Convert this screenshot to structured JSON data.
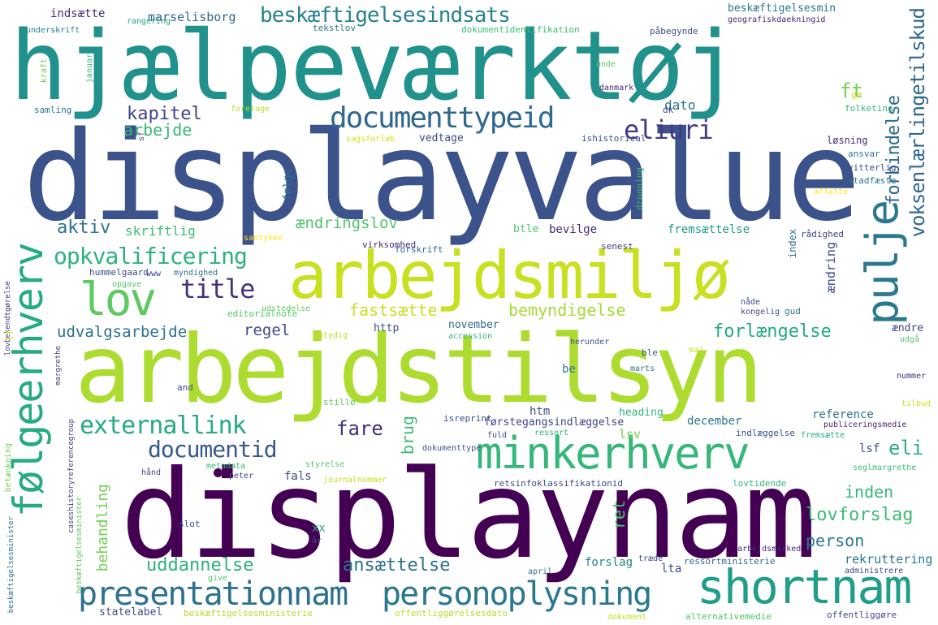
{
  "words": [
    {
      "text": "hjælpeværktøj",
      "color": "#21918c"
    },
    {
      "text": "displayvalue",
      "color": "#3b528b"
    },
    {
      "text": "displaynam",
      "color": "#440154"
    },
    {
      "text": "arbejdstilsyn",
      "color": "#addc30"
    },
    {
      "text": "arbejdsmiljø",
      "color": "#c8e020"
    },
    {
      "text": "minkerhverv",
      "color": "#35b779"
    },
    {
      "text": "shortnam",
      "color": "#1f9e89"
    },
    {
      "text": "presentationnam",
      "color": "#2c728e"
    },
    {
      "text": "personoplysning",
      "color": "#2a788e"
    },
    {
      "text": "følgeerhverv",
      "color": "#25ab82"
    },
    {
      "text": "pulje",
      "color": "#2a788e"
    },
    {
      "text": "lov",
      "color": "#5ec962"
    },
    {
      "text": "documenttypeid",
      "color": "#31688e"
    },
    {
      "text": "beskæftigelsesindsats",
      "color": "#26828e"
    },
    {
      "text": "externallink",
      "color": "#25ab82"
    },
    {
      "text": "opkvalificering",
      "color": "#2db27d"
    },
    {
      "text": "title",
      "color": "#46327e"
    },
    {
      "text": "eliuri",
      "color": "#443983"
    },
    {
      "text": "documentid",
      "color": "#38598c"
    },
    {
      "text": "voksenlærlingetilskud",
      "color": "#31688e"
    },
    {
      "text": "forbindelse",
      "color": "#31688e"
    },
    {
      "text": "kapitel",
      "color": "#414487"
    },
    {
      "text": "arbejde",
      "color": "#35b779"
    },
    {
      "text": "aktiv",
      "color": "#2c728e"
    },
    {
      "text": "skriftlig",
      "color": "#3dbc74"
    },
    {
      "text": "ændringslov",
      "color": "#52c569"
    },
    {
      "text": "fastsætte",
      "color": "#c8e020"
    },
    {
      "text": "bemyndigelse",
      "color": "#a5db36"
    },
    {
      "text": "forlængelse",
      "color": "#25ab82"
    },
    {
      "text": "udvalgsarbejde",
      "color": "#2c728e"
    },
    {
      "text": "regel",
      "color": "#3e4a89"
    },
    {
      "text": "fare",
      "color": "#472d7b"
    },
    {
      "text": "brug",
      "color": "#3dbc74"
    },
    {
      "text": "behandling",
      "color": "#75d054"
    },
    {
      "text": "uddannelse",
      "color": "#2db27d"
    },
    {
      "text": "ansættelse",
      "color": "#2c728e"
    },
    {
      "text": "eli",
      "color": "#2db27d"
    },
    {
      "text": "inden",
      "color": "#35b779"
    },
    {
      "text": "lovforslag",
      "color": "#3dbc74"
    },
    {
      "text": "person",
      "color": "#2a788e"
    },
    {
      "text": "ret",
      "color": "#4ac16d"
    },
    {
      "text": "ft",
      "color": "#75d054"
    },
    {
      "text": "indsætte",
      "color": "#472d7b"
    },
    {
      "text": "marselisborg",
      "color": "#31688e"
    },
    {
      "text": "dato",
      "color": "#2c728e"
    },
    {
      "text": "beskæftigelsesmin",
      "color": "#2a788e"
    },
    {
      "text": "underskrift",
      "color": "#26828e"
    },
    {
      "text": "rangering",
      "color": "#22a884"
    },
    {
      "text": "tekstlov",
      "color": "#2a788e"
    },
    {
      "text": "dokumentidentifikation",
      "color": "#3dbc74"
    },
    {
      "text": "påbegynde",
      "color": "#3e4a89"
    },
    {
      "text": "geografiskdaekningid",
      "color": "#482878"
    },
    {
      "text": "samling",
      "color": "#2c728e"
    },
    {
      "text": "foretage",
      "color": "#b5de2b"
    },
    {
      "text": "sagsforløb",
      "color": "#d8e219"
    },
    {
      "text": "vedtage",
      "color": "#3e4a89"
    },
    {
      "text": "ishistorical",
      "color": "#3b528b"
    },
    {
      "text": "løsning",
      "color": "#482878"
    },
    {
      "text": "folketing",
      "color": "#35b779"
    },
    {
      "text": "ansvar",
      "color": "#2a788e"
    },
    {
      "text": "vitterlig",
      "color": "#3b528b"
    },
    {
      "text": "stadfæste",
      "color": "#2c728e"
    },
    {
      "text": "affatte",
      "color": "#fde725"
    },
    {
      "text": "unde",
      "color": "#5ec962"
    },
    {
      "text": "danmark",
      "color": "#482878"
    },
    {
      "text": "dk",
      "color": "#3e4a89"
    },
    {
      "text": "gø",
      "color": "#c8e020"
    },
    {
      "text": "følge",
      "color": "#2c728e"
    },
    {
      "text": "dronning",
      "color": "#3dbc74"
    },
    {
      "text": "samtykke",
      "color": "#fde725"
    },
    {
      "text": "virksomhed",
      "color": "#482878"
    },
    {
      "text": "forskrift",
      "color": "#31688e"
    },
    {
      "text": "senest",
      "color": "#443983"
    },
    {
      "text": "index",
      "color": "#2c728e"
    },
    {
      "text": "rådighed",
      "color": "#404688"
    },
    {
      "text": "fremsættelse",
      "color": "#1f9e89"
    },
    {
      "text": "btle",
      "color": "#52c569"
    },
    {
      "text": "bevilge",
      "color": "#482878"
    },
    {
      "text": "ændring",
      "color": "#3e4a89"
    },
    {
      "text": "hummelgaard",
      "color": "#3e4a89"
    },
    {
      "text": "www",
      "color": "#414487"
    },
    {
      "text": "myndighed",
      "color": "#2c728e"
    },
    {
      "text": "opgave",
      "color": "#52c569"
    },
    {
      "text": "editorialnote",
      "color": "#52c569"
    },
    {
      "text": "udstedelse",
      "color": "#63cb5f"
    },
    {
      "text": "nåde",
      "color": "#3e4a89"
    },
    {
      "text": "kongelig",
      "color": "#3e4a89"
    },
    {
      "text": "gud",
      "color": "#2c728e"
    },
    {
      "text": "entydig",
      "color": "#bddf26"
    },
    {
      "text": "http",
      "color": "#3b528b"
    },
    {
      "text": "november",
      "color": "#31688e"
    },
    {
      "text": "accession",
      "color": "#35b779"
    },
    {
      "text": "ændre",
      "color": "#404688"
    },
    {
      "text": "udgå",
      "color": "#52c569"
    },
    {
      "text": "herunder",
      "color": "#3b528b"
    },
    {
      "text": "maj",
      "color": "#c8e020"
    },
    {
      "text": "ble",
      "color": "#3b528b"
    },
    {
      "text": "marts",
      "color": "#2a788e"
    },
    {
      "text": "be",
      "color": "#2c728e"
    },
    {
      "text": "and",
      "color": "#3e4a89"
    },
    {
      "text": "stille",
      "color": "#5ec962"
    },
    {
      "text": "htm",
      "color": "#3b528b"
    },
    {
      "text": "isreprint",
      "color": "#3b528b"
    },
    {
      "text": "førstegangsindlæggelse",
      "color": "#404688"
    },
    {
      "text": "heading",
      "color": "#35b779"
    },
    {
      "text": "december",
      "color": "#2c728e"
    },
    {
      "text": "reference",
      "color": "#2c728e"
    },
    {
      "text": "publiceringsmedie",
      "color": "#482878"
    },
    {
      "text": "nummer",
      "color": "#46327e"
    },
    {
      "text": "tilbud",
      "color": "#c8e020"
    },
    {
      "text": "lsf",
      "color": "#3e4a89"
    },
    {
      "text": "seglmargrethe",
      "color": "#3dbc74"
    },
    {
      "text": "fuld",
      "color": "#3e4a89"
    },
    {
      "text": "ressort",
      "color": "#2db27d"
    },
    {
      "text": "indlæggelse",
      "color": "#3b528b"
    },
    {
      "text": "fremsætte",
      "color": "#25ab82"
    },
    {
      "text": "dokumenttype",
      "color": "#3b528b"
    },
    {
      "text": "lsv",
      "color": "#75d054"
    },
    {
      "text": "metadata",
      "color": "#35b779"
    },
    {
      "text": "peter",
      "color": "#3e4a89"
    },
    {
      "text": "styrelse",
      "color": "#52c569"
    },
    {
      "text": "journalnummer",
      "color": "#c8e020"
    },
    {
      "text": "fals",
      "color": "#3e4a89"
    },
    {
      "text": "hånd",
      "color": "#3e4a89"
    },
    {
      "text": "retsinfoklassifikationid",
      "color": "#3e4a89"
    },
    {
      "text": "lovtidende",
      "color": "#35b779"
    },
    {
      "text": "xx",
      "color": "#25ab82"
    },
    {
      "text": "år",
      "color": "#3e4a89"
    },
    {
      "text": "slot",
      "color": "#3e4a89"
    },
    {
      "text": "arbejdsmarked",
      "color": "#482878"
    },
    {
      "text": "forslag",
      "color": "#26828e"
    },
    {
      "text": "træde",
      "color": "#3e4a89"
    },
    {
      "text": "ressortministerie",
      "color": "#31688e"
    },
    {
      "text": "rekruttering",
      "color": "#2a788e"
    },
    {
      "text": "administrere",
      "color": "#3e4a89"
    },
    {
      "text": "lta",
      "color": "#3e4a89"
    },
    {
      "text": "april",
      "color": "#2a788e"
    },
    {
      "text": "give",
      "color": "#52c569"
    },
    {
      "text": "statelabel",
      "color": "#3b528b"
    },
    {
      "text": "beskæftigelsesministerie",
      "color": "#b5de2b"
    },
    {
      "text": "offentliggørelsesdato",
      "color": "#b5de2b"
    },
    {
      "text": "dokument",
      "color": "#c8e020"
    },
    {
      "text": "alternativemedie",
      "color": "#52c569"
    },
    {
      "text": "offentliggøre",
      "color": "#3e4a89"
    },
    {
      "text": "kraft",
      "color": "#75d054"
    },
    {
      "text": "januar",
      "color": "#35b779"
    },
    {
      "text": "sf",
      "color": "#3e4a89"
    },
    {
      "text": "lovbekendtgørelse",
      "color": "#443983"
    },
    {
      "text": "lf",
      "color": "#d8e219"
    },
    {
      "text": "margrethe",
      "color": "#414487"
    },
    {
      "text": "caseshistoryreferencegroup",
      "color": "#443983"
    },
    {
      "text": "betænkning",
      "color": "#75d054"
    },
    {
      "text": "beskæftigelsesminister",
      "color": "#5ec962"
    },
    {
      "text": "beskæftigelsesminister",
      "color": "#2c728e"
    }
  ]
}
